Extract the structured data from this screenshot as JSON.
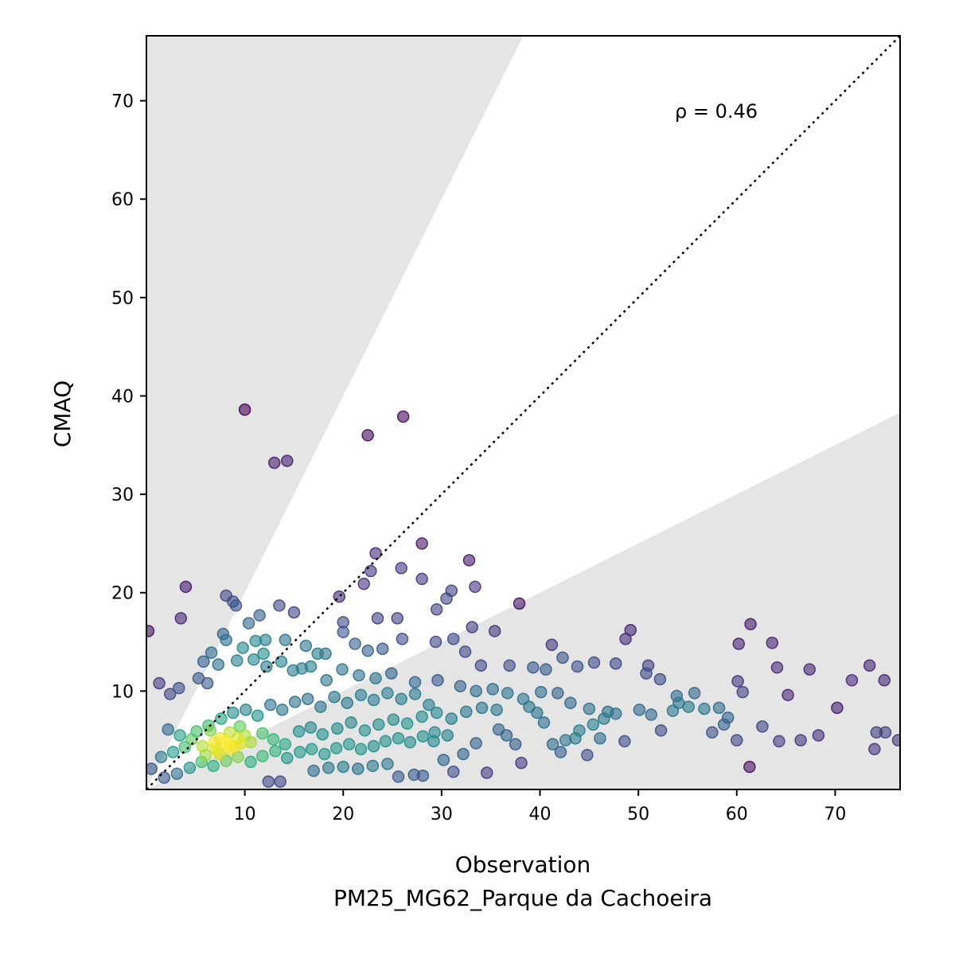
{
  "chart_data": {
    "type": "scatter",
    "xlabel": "Observation",
    "xlabel2": "PM25_MG62_Parque da Cachoeira",
    "ylabel": "CMAQ",
    "annotation": "ρ = 0.46",
    "xlim": [
      0,
      76.6
    ],
    "ylim": [
      0,
      76.6
    ],
    "x_ticks": [
      10,
      20,
      30,
      40,
      50,
      60,
      70
    ],
    "y_ticks": [
      10,
      20,
      30,
      40,
      50,
      60,
      70
    ],
    "x_tick_labels": [
      "10",
      "20",
      "30",
      "40",
      "50",
      "60",
      "70"
    ],
    "y_tick_labels": [
      "10",
      "20",
      "30",
      "40",
      "50",
      "60",
      "70"
    ],
    "reference_line": {
      "slope": 1,
      "style": "dotted",
      "color": "#000000"
    },
    "shaded_region": {
      "description": "outside factor-of-2 band",
      "upper_slope": 2,
      "lower_slope": 0.5,
      "color": "#e5e5e5"
    },
    "colormap": "viridis",
    "point_color_encoding": "density",
    "grid": false,
    "points": [
      [
        0.2,
        16.1
      ],
      [
        10,
        38.6
      ],
      [
        13,
        33.2
      ],
      [
        14.3,
        33.4
      ],
      [
        22.5,
        36
      ],
      [
        26.1,
        37.9
      ],
      [
        4,
        20.6
      ],
      [
        3.5,
        17.4
      ],
      [
        8.1,
        19.7
      ],
      [
        8.8,
        19.1
      ],
      [
        9.1,
        18.7
      ],
      [
        11.5,
        17.7
      ],
      [
        13.5,
        18.7
      ],
      [
        15,
        18
      ],
      [
        23.3,
        24
      ],
      [
        25.9,
        22.5
      ],
      [
        28,
        25
      ],
      [
        28,
        21.4
      ],
      [
        33.4,
        20.6
      ],
      [
        32.8,
        23.3
      ],
      [
        31,
        20.2
      ],
      [
        30.5,
        19.4
      ],
      [
        19.6,
        19.6
      ],
      [
        22.8,
        22.2
      ],
      [
        22.1,
        20.9
      ],
      [
        29.5,
        18.3
      ],
      [
        37.9,
        18.9
      ],
      [
        20,
        17
      ],
      [
        23.5,
        17.4
      ],
      [
        25.5,
        17.4
      ],
      [
        10.4,
        16.9
      ],
      [
        11.1,
        15.1
      ],
      [
        12.1,
        15.2
      ],
      [
        14.1,
        15.2
      ],
      [
        16.2,
        14.6
      ],
      [
        17.4,
        13.8
      ],
      [
        18.2,
        13.8
      ],
      [
        20,
        16
      ],
      [
        21.2,
        14.8
      ],
      [
        22.5,
        14.1
      ],
      [
        24,
        14.3
      ],
      [
        26,
        15.3
      ],
      [
        29.4,
        15
      ],
      [
        31.2,
        15.3
      ],
      [
        33.1,
        16.5
      ],
      [
        35.4,
        16.1
      ],
      [
        32.4,
        14
      ],
      [
        34,
        12.6
      ],
      [
        36.9,
        12.6
      ],
      [
        39.3,
        12.4
      ],
      [
        41.2,
        14.7
      ],
      [
        40.6,
        12.2
      ],
      [
        42.3,
        13.4
      ],
      [
        43.8,
        12.5
      ],
      [
        45.5,
        12.9
      ],
      [
        47.7,
        12.8
      ],
      [
        48.7,
        15.3
      ],
      [
        49.2,
        16.2
      ],
      [
        51,
        12.6
      ],
      [
        52.2,
        11.2
      ],
      [
        50.8,
        11.8
      ],
      [
        53.9,
        9.5
      ],
      [
        55.7,
        9.8
      ],
      [
        56.7,
        8.2
      ],
      [
        58.2,
        8.3
      ],
      [
        59.1,
        7.3
      ],
      [
        60.1,
        11
      ],
      [
        60.6,
        9.9
      ],
      [
        61.4,
        16.8
      ],
      [
        60.2,
        14.8
      ],
      [
        63.6,
        14.9
      ],
      [
        64.1,
        12.4
      ],
      [
        65.2,
        9.6
      ],
      [
        67.4,
        12.2
      ],
      [
        70.2,
        8.3
      ],
      [
        71.7,
        11.1
      ],
      [
        73.5,
        12.6
      ],
      [
        75,
        11.1
      ],
      [
        74.2,
        5.8
      ],
      [
        75.1,
        5.8
      ],
      [
        76.4,
        5
      ],
      [
        74,
        4.1
      ],
      [
        68.3,
        5.5
      ],
      [
        66.5,
        5
      ],
      [
        64.3,
        4.9
      ],
      [
        62.6,
        6.4
      ],
      [
        61.3,
        2.3
      ],
      [
        60,
        5
      ],
      [
        58.7,
        6.6
      ],
      [
        57.5,
        5.8
      ],
      [
        55.1,
        8.4
      ],
      [
        54.1,
        8.8
      ],
      [
        53.5,
        8
      ],
      [
        52.3,
        6
      ],
      [
        51.3,
        7.6
      ],
      [
        50.1,
        8.1
      ],
      [
        48.6,
        4.9
      ],
      [
        47.7,
        7.7
      ],
      [
        46.5,
        7.2
      ],
      [
        46.1,
        5.2
      ],
      [
        45.4,
        6.6
      ],
      [
        44.8,
        3.5
      ],
      [
        44,
        6
      ],
      [
        43.6,
        5.2
      ],
      [
        42.6,
        5
      ],
      [
        42.1,
        3.8
      ],
      [
        41.3,
        4.6
      ],
      [
        40.4,
        6.8
      ],
      [
        39.7,
        7.8
      ],
      [
        38.9,
        8.4
      ],
      [
        38.1,
        2.7
      ],
      [
        37.5,
        4.6
      ],
      [
        36.6,
        5.5
      ],
      [
        35.8,
        6.1
      ],
      [
        34.6,
        1.7
      ],
      [
        33.5,
        4.7
      ],
      [
        32.2,
        3.6
      ],
      [
        31.2,
        1.8
      ],
      [
        30.2,
        3
      ],
      [
        29.2,
        4.9
      ],
      [
        28.1,
        1.4
      ],
      [
        27.2,
        1.5
      ],
      [
        25.6,
        1.3
      ],
      [
        13.6,
        0.8
      ],
      [
        12.4,
        0.8
      ],
      [
        15.8,
        12.3
      ],
      [
        16.7,
        12.5
      ],
      [
        18.3,
        11.1
      ],
      [
        19.9,
        12.2
      ],
      [
        21.6,
        11.6
      ],
      [
        23.3,
        11.3
      ],
      [
        24.9,
        11.8
      ],
      [
        27.3,
        10.9
      ],
      [
        29.6,
        11.1
      ],
      [
        31.9,
        10.5
      ],
      [
        33.5,
        10
      ],
      [
        35.2,
        10.2
      ],
      [
        36.7,
        9.8
      ],
      [
        38.3,
        9.2
      ],
      [
        40.1,
        9.9
      ],
      [
        41.8,
        9.8
      ],
      [
        43.1,
        8.8
      ],
      [
        45,
        8.2
      ],
      [
        46.9,
        7.9
      ],
      [
        1.3,
        10.8
      ],
      [
        2.4,
        9.7
      ],
      [
        3.3,
        10.3
      ],
      [
        5.3,
        11.3
      ],
      [
        6.2,
        10.8
      ],
      [
        7.3,
        12.7
      ],
      [
        9.2,
        13.1
      ],
      [
        10.9,
        13.2
      ],
      [
        12.2,
        12.5
      ],
      [
        13.7,
        13
      ],
      [
        14.9,
        12.1
      ],
      [
        5.8,
        13
      ],
      [
        6.6,
        13.9
      ],
      [
        7.8,
        15.8
      ],
      [
        8.1,
        15.2
      ],
      [
        9.8,
        14.4
      ],
      [
        11.9,
        13.8
      ],
      [
        2.2,
        6.1
      ],
      [
        3.4,
        5.5
      ],
      [
        4.6,
        5.1
      ],
      [
        5.7,
        4.4
      ],
      [
        6.9,
        4.8
      ],
      [
        7.4,
        3.6
      ],
      [
        8.5,
        4.5
      ],
      [
        9.3,
        5.2
      ],
      [
        10.6,
        4.8
      ],
      [
        11.8,
        5.7
      ],
      [
        12.9,
        5.1
      ],
      [
        14.1,
        4.6
      ],
      [
        15.5,
        5.9
      ],
      [
        16.7,
        6.3
      ],
      [
        17.9,
        5.6
      ],
      [
        19.4,
        6.2
      ],
      [
        20.8,
        6.8
      ],
      [
        22.2,
        6
      ],
      [
        23.6,
        6.6
      ],
      [
        25.1,
        7.1
      ],
      [
        26.5,
        6.7
      ],
      [
        28,
        7.4
      ],
      [
        29.5,
        7.8
      ],
      [
        31,
        7.2
      ],
      [
        32.5,
        7.9
      ],
      [
        34.1,
        8.3
      ],
      [
        35.6,
        8.1
      ],
      [
        0.5,
        2.1
      ],
      [
        1.5,
        3.3
      ],
      [
        2.7,
        3.8
      ],
      [
        3.9,
        4.3
      ],
      [
        5.1,
        5.9
      ],
      [
        6.3,
        6.5
      ],
      [
        7.6,
        7.2
      ],
      [
        8.8,
        7.8
      ],
      [
        10.1,
        8.1
      ],
      [
        11.3,
        7.5
      ],
      [
        12.6,
        8.6
      ],
      [
        13.8,
        8.1
      ],
      [
        15.1,
        8.9
      ],
      [
        16.4,
        9.2
      ],
      [
        17.7,
        8.4
      ],
      [
        19.1,
        9.4
      ],
      [
        20.4,
        8.8
      ],
      [
        21.8,
        9.6
      ],
      [
        23.1,
        9.1
      ],
      [
        24.5,
        9.8
      ],
      [
        25.9,
        9.2
      ],
      [
        27.3,
        9.7
      ],
      [
        28.7,
        8.6
      ],
      [
        1.8,
        1.2
      ],
      [
        3.1,
        1.6
      ],
      [
        4.4,
        2.2
      ],
      [
        5.6,
        2.8
      ],
      [
        6.8,
        2.4
      ],
      [
        8.1,
        2.9
      ],
      [
        9.3,
        3.3
      ],
      [
        10.6,
        2.8
      ],
      [
        11.8,
        3.4
      ],
      [
        13.1,
        3.9
      ],
      [
        14.3,
        3.2
      ],
      [
        15.6,
        3.8
      ],
      [
        16.8,
        4.1
      ],
      [
        18.1,
        3.6
      ],
      [
        19.3,
        4.2
      ],
      [
        20.6,
        4.6
      ],
      [
        21.8,
        4.1
      ],
      [
        23.1,
        4.4
      ],
      [
        24.3,
        4.9
      ],
      [
        25.6,
        5.2
      ],
      [
        26.8,
        4.8
      ],
      [
        28.1,
        5.4
      ],
      [
        29.3,
        5.8
      ],
      [
        30.6,
        5.5
      ],
      [
        17,
        1.9
      ],
      [
        18.5,
        2.2
      ],
      [
        20,
        2.3
      ],
      [
        21.5,
        2.1
      ],
      [
        23,
        2.4
      ],
      [
        24.5,
        2.6
      ],
      [
        6.5,
        6
      ],
      [
        7.5,
        5.2
      ],
      [
        8.5,
        5.8
      ],
      [
        9.5,
        6.4
      ],
      [
        7,
        4.2
      ],
      [
        8,
        4.9
      ],
      [
        9,
        4.4
      ],
      [
        10,
        5.5
      ],
      [
        6,
        3.5
      ],
      [
        7.2,
        3.9
      ],
      [
        8.4,
        4.1
      ],
      [
        9.6,
        4.7
      ]
    ]
  }
}
